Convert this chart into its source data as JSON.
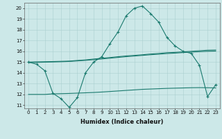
{
  "xlabel": "Humidex (Indice chaleur)",
  "x": [
    0,
    1,
    2,
    3,
    4,
    5,
    6,
    7,
    8,
    9,
    10,
    11,
    12,
    13,
    14,
    15,
    16,
    17,
    18,
    19,
    20,
    21,
    22,
    23
  ],
  "series1_y": [
    15.0,
    14.8,
    14.2,
    12.1,
    11.6,
    10.8,
    11.7,
    14.0,
    15.0,
    15.5,
    16.7,
    17.8,
    19.3,
    20.0,
    20.2,
    19.5,
    18.7,
    17.3,
    16.5,
    16.0,
    15.8,
    14.7,
    11.8,
    12.9
  ],
  "series2_y": [
    15.0,
    15.02,
    15.03,
    15.05,
    15.07,
    15.09,
    15.15,
    15.2,
    15.28,
    15.35,
    15.42,
    15.5,
    15.57,
    15.62,
    15.68,
    15.75,
    15.8,
    15.87,
    15.9,
    15.95,
    16.0,
    16.05,
    16.1,
    16.12
  ],
  "series3_y": [
    14.95,
    14.97,
    14.99,
    15.01,
    15.03,
    15.06,
    15.11,
    15.16,
    15.22,
    15.29,
    15.36,
    15.43,
    15.5,
    15.56,
    15.62,
    15.68,
    15.73,
    15.79,
    15.83,
    15.88,
    15.92,
    15.96,
    16.0,
    16.02
  ],
  "series4_y": [
    12.0,
    12.0,
    12.0,
    12.05,
    12.07,
    12.09,
    12.12,
    12.15,
    12.18,
    12.22,
    12.27,
    12.32,
    12.37,
    12.42,
    12.47,
    12.5,
    12.53,
    12.56,
    12.58,
    12.6,
    12.62,
    12.63,
    12.62,
    12.6
  ],
  "line_color": "#1a7a6e",
  "bg_color": "#cce8e8",
  "grid_color": "#aacfcf",
  "yticks": [
    11,
    12,
    13,
    14,
    15,
    16,
    17,
    18,
    19,
    20
  ]
}
